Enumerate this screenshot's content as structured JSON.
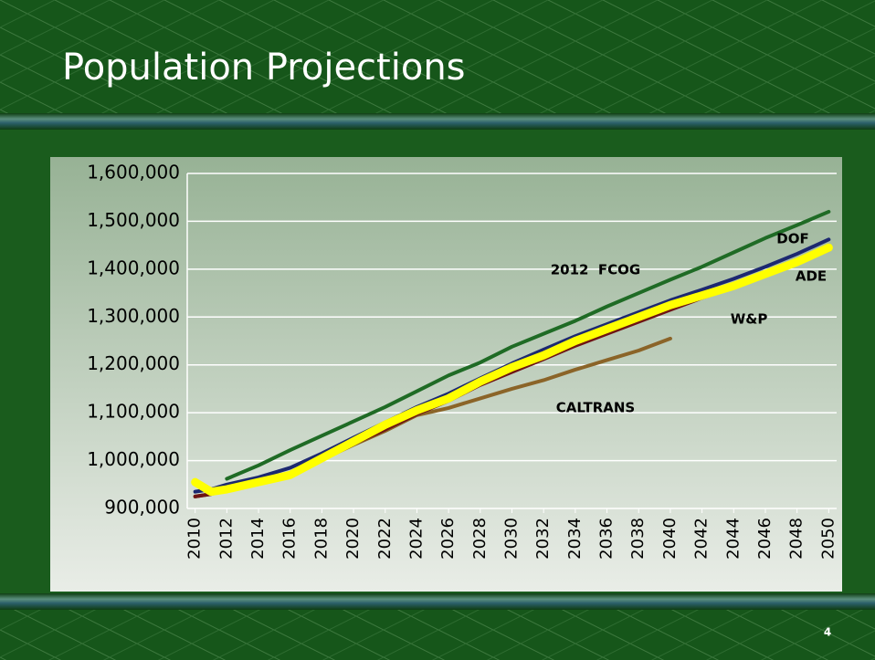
{
  "title": "Population Projections",
  "slide_number": "4",
  "chart_data": {
    "type": "line",
    "x": [
      2010,
      2011,
      2012,
      2014,
      2016,
      2018,
      2020,
      2022,
      2024,
      2026,
      2028,
      2030,
      2032,
      2034,
      2036,
      2038,
      2040,
      2042,
      2044,
      2046,
      2048,
      2050
    ],
    "series": [
      {
        "name": "2012  FCOG",
        "color": "#1f6b25",
        "values": [
          null,
          null,
          962000,
          990000,
          1022000,
          1052000,
          1082000,
          1112000,
          1145000,
          1178000,
          1205000,
          1238000,
          1265000,
          1292000,
          1322000,
          1350000,
          1378000,
          1405000,
          1435000,
          1465000,
          1492000,
          1520000
        ]
      },
      {
        "name": "CALTRANS",
        "color": "#8b6428",
        "values": [
          925000,
          930000,
          940000,
          955000,
          970000,
          1002000,
          1033000,
          1062000,
          1095000,
          1110000,
          1130000,
          1150000,
          1168000,
          1190000,
          1210000,
          1230000,
          1255000,
          null,
          null,
          null,
          null,
          null
        ]
      },
      {
        "name": "W&P",
        "color": "#6e1414",
        "values": [
          925000,
          930000,
          940000,
          955000,
          970000,
          1002000,
          1035000,
          1065000,
          1097000,
          1125000,
          1158000,
          1185000,
          1212000,
          1240000,
          1265000,
          1290000,
          1315000,
          1340000,
          1362000,
          1388000,
          1412000,
          1440000
        ]
      },
      {
        "name": "DOF",
        "color": "#1c2870",
        "values": [
          935000,
          940000,
          950000,
          965000,
          985000,
          1015000,
          1048000,
          1080000,
          1112000,
          1140000,
          1172000,
          1203000,
          1232000,
          1260000,
          1285000,
          1310000,
          1335000,
          1357000,
          1380000,
          1405000,
          1432000,
          1462000
        ]
      },
      {
        "name": "ADE",
        "color": "#ffff00",
        "values": [
          955000,
          935000,
          940000,
          955000,
          970000,
          1005000,
          1040000,
          1075000,
          1105000,
          1130000,
          1165000,
          1195000,
          1220000,
          1250000,
          1275000,
          1300000,
          1325000,
          1345000,
          1365000,
          1390000,
          1415000,
          1445000
        ]
      }
    ],
    "xlim": [
      2009.5,
      2050.5
    ],
    "xticks": [
      2010,
      2012,
      2014,
      2016,
      2018,
      2020,
      2022,
      2024,
      2026,
      2028,
      2030,
      2032,
      2034,
      2036,
      2038,
      2040,
      2042,
      2044,
      2046,
      2048,
      2050
    ],
    "ylim": [
      900000,
      1600000
    ],
    "yticks": [
      {
        "value": 900000,
        "label": "900,000"
      },
      {
        "value": 1000000,
        "label": "1,000,000"
      },
      {
        "value": 1100000,
        "label": "1,100,000"
      },
      {
        "value": 1200000,
        "label": "1,200,000"
      },
      {
        "value": 1300000,
        "label": "1,300,000"
      },
      {
        "value": 1400000,
        "label": "1,400,000"
      },
      {
        "value": 1500000,
        "label": "1,500,000"
      },
      {
        "value": 1600000,
        "label": "1,600,000"
      }
    ],
    "grid": true
  }
}
